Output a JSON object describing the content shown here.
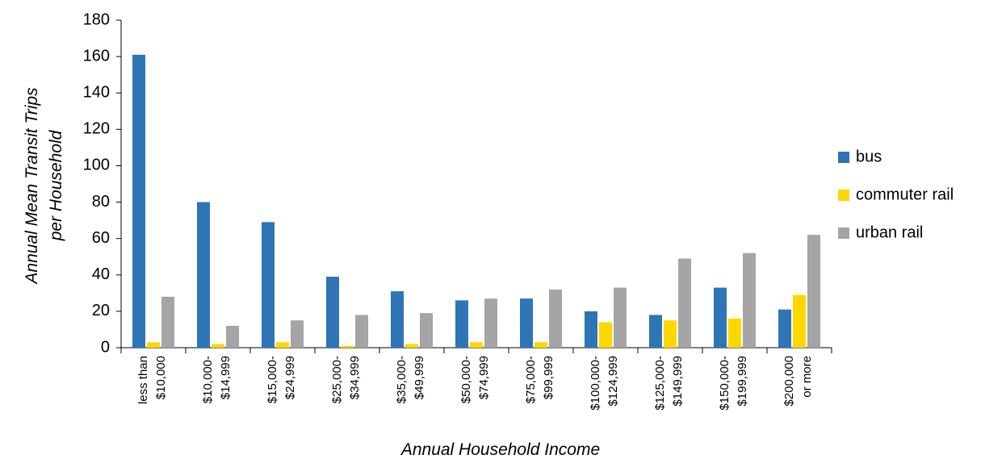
{
  "chart_data": {
    "type": "bar",
    "ylabel": [
      "Annual Mean Transit Trips",
      "per Household"
    ],
    "xlabel": "Annual Household Income",
    "categories": [
      [
        "less than",
        "$10,000"
      ],
      [
        "$10,000-",
        "$14,999"
      ],
      [
        "$15,000-",
        "$24,999"
      ],
      [
        "$25,000-",
        "$34,999"
      ],
      [
        "$35,000-",
        "$49,999"
      ],
      [
        "$50,000-",
        "$74,999"
      ],
      [
        "$75,000-",
        "$99,999"
      ],
      [
        "$100,000-",
        "$124,999"
      ],
      [
        "$125,000-",
        "$149,999"
      ],
      [
        "$150,000-",
        "$199,999"
      ],
      [
        "$200,000",
        "or more"
      ]
    ],
    "series": [
      {
        "name": "bus",
        "color": "#2e75b6",
        "values": [
          161,
          80,
          69,
          39,
          31,
          26,
          27,
          20,
          18,
          33,
          21
        ]
      },
      {
        "name": "commuter rail",
        "color": "#ffd700",
        "values": [
          3,
          2,
          3,
          1,
          2,
          3,
          3,
          14,
          15,
          16,
          29
        ]
      },
      {
        "name": "urban rail",
        "color": "#a5a5a5",
        "values": [
          28,
          12,
          15,
          18,
          19,
          27,
          32,
          33,
          49,
          52,
          62
        ]
      }
    ],
    "ylim": [
      0,
      180
    ],
    "yticks": [
      0,
      20,
      40,
      60,
      80,
      100,
      120,
      140,
      160,
      180
    ],
    "legend": "right"
  }
}
